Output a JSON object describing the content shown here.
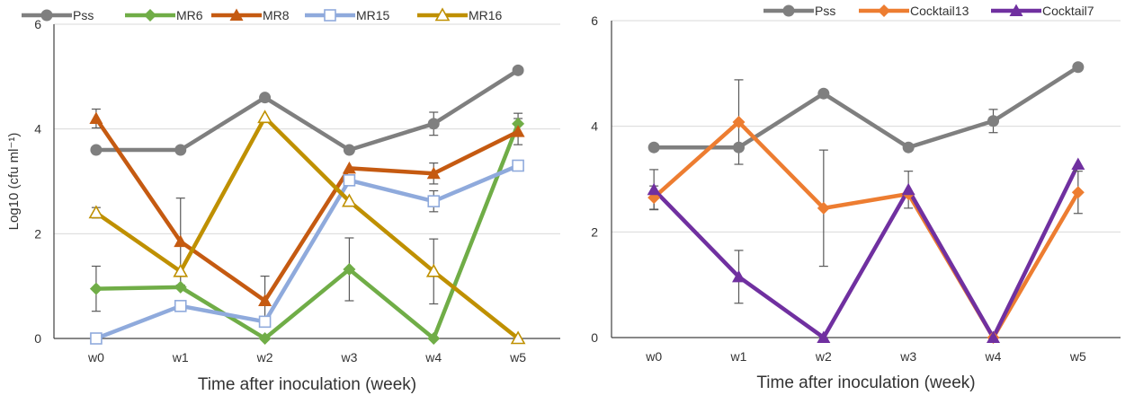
{
  "chart_data": [
    {
      "type": "line",
      "x": [
        "w0",
        "w1",
        "w2",
        "w3",
        "w4",
        "w5"
      ],
      "xlabel": "Time after inoculation (week)",
      "ylabel": "Log10 (cfu ml⁻¹)",
      "ylim": [
        0,
        6
      ],
      "yticks": [
        0,
        2,
        4,
        6
      ],
      "grid": true,
      "legend": "top",
      "series": [
        {
          "name": "Pss",
          "values": [
            3.6,
            3.6,
            4.6,
            3.6,
            4.1,
            5.12
          ],
          "errors": [
            null,
            null,
            null,
            null,
            0.22,
            null
          ],
          "color": "#7f7f7f",
          "marker": "circle"
        },
        {
          "name": "MR6",
          "values": [
            0.95,
            0.98,
            0.0,
            1.32,
            0.0,
            4.1
          ],
          "errors": [
            0.43,
            null,
            null,
            0.6,
            null,
            0.2
          ],
          "color": "#70ad47",
          "marker": "diamond"
        },
        {
          "name": "MR8",
          "values": [
            4.2,
            1.85,
            0.72,
            3.25,
            3.15,
            3.95
          ],
          "errors": [
            0.18,
            0.83,
            0.47,
            null,
            0.2,
            0.25
          ],
          "color": "#c55a11",
          "marker": "triangle"
        },
        {
          "name": "MR15",
          "values": [
            0.0,
            0.62,
            0.32,
            3.02,
            2.62,
            3.3
          ],
          "errors": [
            null,
            null,
            null,
            null,
            0.2,
            null
          ],
          "color": "#8faadc",
          "marker": "square-open"
        },
        {
          "name": "MR16",
          "values": [
            2.4,
            1.28,
            4.22,
            2.62,
            1.28,
            0.0
          ],
          "errors": [
            0.1,
            null,
            null,
            null,
            0.62,
            null
          ],
          "color": "#bf9000",
          "marker": "triangle-open"
        }
      ]
    },
    {
      "type": "line",
      "x": [
        "w0",
        "w1",
        "w2",
        "w3",
        "w4",
        "w5"
      ],
      "xlabel": "Time after inoculation (week)",
      "ylabel": "",
      "ylim": [
        0,
        6
      ],
      "yticks": [
        0,
        2,
        4,
        6
      ],
      "grid": true,
      "legend": "top",
      "series": [
        {
          "name": "Pss",
          "values": [
            3.6,
            3.6,
            4.62,
            3.6,
            4.1,
            5.12
          ],
          "errors": [
            null,
            null,
            null,
            null,
            0.22,
            null
          ],
          "color": "#7f7f7f",
          "marker": "circle"
        },
        {
          "name": "Cocktail13",
          "values": [
            2.65,
            4.08,
            2.45,
            2.72,
            0.0,
            2.75
          ],
          "errors": [
            0.22,
            0.8,
            1.1,
            null,
            null,
            0.4
          ],
          "color": "#ed7d31",
          "marker": "diamond"
        },
        {
          "name": "Cocktail7",
          "values": [
            2.8,
            1.15,
            0.0,
            2.8,
            0.0,
            3.28
          ],
          "errors": [
            0.38,
            0.5,
            null,
            0.35,
            null,
            null
          ],
          "color": "#7030a0",
          "marker": "triangle"
        }
      ]
    }
  ]
}
